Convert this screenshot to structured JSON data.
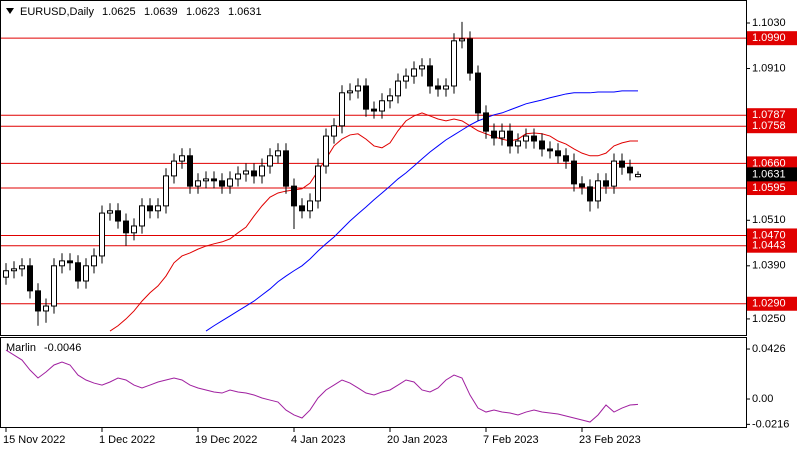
{
  "chart_data": [
    {
      "type": "candlestick",
      "title": "EURUSD,Daily",
      "categories": [
        "15 Nov 2022",
        null,
        null,
        null,
        null,
        null,
        null,
        null,
        null,
        null,
        null,
        null,
        "1 Dec 2022",
        null,
        null,
        null,
        null,
        null,
        null,
        null,
        null,
        null,
        null,
        null,
        "19 Dec 2022",
        null,
        null,
        null,
        null,
        null,
        null,
        null,
        null,
        null,
        null,
        null,
        "4 Jan 2023",
        null,
        null,
        null,
        null,
        null,
        null,
        null,
        null,
        null,
        null,
        null,
        "20 Jan 2023",
        null,
        null,
        null,
        null,
        null,
        null,
        null,
        null,
        null,
        null,
        null,
        "7 Feb 2023",
        null,
        null,
        null,
        null,
        null,
        null,
        null,
        null,
        null,
        null,
        null,
        "23 Feb 2023",
        null,
        null,
        null,
        null,
        null,
        null,
        null
      ],
      "open": [
        1.036,
        1.0377,
        1.0382,
        1.039,
        1.0324,
        1.0271,
        1.0284,
        1.039,
        1.0403,
        1.0398,
        1.035,
        1.039,
        1.0416,
        1.0529,
        1.0535,
        1.0508,
        1.0477,
        1.0495,
        1.0548,
        1.0535,
        1.0548,
        1.0627,
        1.0666,
        1.068,
        1.06,
        1.0614,
        1.0619,
        1.0614,
        1.06,
        1.0619,
        1.0632,
        1.064,
        1.0627,
        1.0653,
        1.068,
        1.0693,
        1.06,
        1.0548,
        1.0535,
        1.0561,
        1.0653,
        1.0732,
        1.0759,
        1.0846,
        1.0851,
        1.0864,
        1.0803,
        1.0798,
        1.0825,
        1.0838,
        1.0877,
        1.089,
        1.0909,
        1.0917,
        1.0864,
        1.0856,
        1.0864,
        1.0983,
        1.0988,
        1.0898,
        1.0793,
        1.0745,
        1.0727,
        1.0745,
        1.0706,
        1.0719,
        1.0732,
        1.0719,
        1.0698,
        1.0693,
        1.068,
        1.0666,
        1.0606,
        1.0598,
        1.0561,
        1.0614,
        1.06,
        1.0666,
        1.065,
        1.0625
      ],
      "high": [
        1.0397,
        1.0402,
        1.041,
        1.041,
        1.0344,
        1.0304,
        1.041,
        1.0423,
        1.0423,
        1.0418,
        1.041,
        1.0436,
        1.0549,
        1.0555,
        1.0555,
        1.0528,
        1.0515,
        1.0568,
        1.0568,
        1.0568,
        1.0647,
        1.0686,
        1.07,
        1.07,
        1.0634,
        1.0639,
        1.0639,
        1.0634,
        1.0639,
        1.0652,
        1.066,
        1.066,
        1.0673,
        1.07,
        1.0713,
        1.0713,
        1.062,
        1.0568,
        1.0581,
        1.0673,
        1.0752,
        1.0779,
        1.0866,
        1.0871,
        1.0884,
        1.0884,
        1.0823,
        1.0845,
        1.0858,
        1.0897,
        1.091,
        1.0929,
        1.0937,
        1.0937,
        1.0884,
        1.0884,
        1.1003,
        1.1033,
        1.1008,
        1.0918,
        1.0813,
        1.0765,
        1.0765,
        1.0765,
        1.0739,
        1.0752,
        1.0752,
        1.0739,
        1.0718,
        1.0713,
        1.07,
        1.0686,
        1.0626,
        1.0618,
        1.0634,
        1.0634,
        1.0686,
        1.0686,
        1.067,
        1.0639
      ],
      "low": [
        1.034,
        1.0357,
        1.0362,
        1.0304,
        1.0232,
        1.024,
        1.0264,
        1.037,
        1.0378,
        1.033,
        1.033,
        1.037,
        1.0396,
        1.0509,
        1.0488,
        1.0443,
        1.0457,
        1.0475,
        1.0515,
        1.0515,
        1.0528,
        1.0607,
        1.0646,
        1.058,
        1.058,
        1.0594,
        1.0594,
        1.058,
        1.058,
        1.0599,
        1.0612,
        1.0607,
        1.0607,
        1.0633,
        1.066,
        1.058,
        1.0487,
        1.0515,
        1.0515,
        1.0541,
        1.0633,
        1.0712,
        1.0739,
        1.0826,
        1.0831,
        1.0783,
        1.0778,
        1.0778,
        1.0805,
        1.0818,
        1.0857,
        1.087,
        1.0889,
        1.0844,
        1.0836,
        1.0836,
        1.0844,
        1.0963,
        1.0878,
        1.0773,
        1.0725,
        1.0707,
        1.0707,
        1.0686,
        1.0686,
        1.0699,
        1.0699,
        1.0678,
        1.0673,
        1.066,
        1.0646,
        1.0586,
        1.0578,
        1.0533,
        1.0541,
        1.058,
        1.058,
        1.063,
        1.0615,
        1.0623
      ],
      "close": [
        1.0377,
        1.0382,
        1.039,
        1.0324,
        1.0271,
        1.0284,
        1.039,
        1.0403,
        1.0398,
        1.035,
        1.039,
        1.0416,
        1.0529,
        1.0535,
        1.0508,
        1.0477,
        1.0495,
        1.0548,
        1.0535,
        1.0548,
        1.0627,
        1.0666,
        1.068,
        1.06,
        1.0614,
        1.0619,
        1.0614,
        1.06,
        1.0619,
        1.0632,
        1.064,
        1.0627,
        1.0653,
        1.068,
        1.0693,
        1.06,
        1.0548,
        1.0535,
        1.0561,
        1.0653,
        1.0732,
        1.0759,
        1.0846,
        1.0851,
        1.0864,
        1.0803,
        1.0798,
        1.0825,
        1.0838,
        1.0877,
        1.089,
        1.0909,
        1.0917,
        1.0864,
        1.0856,
        1.0864,
        1.0983,
        1.0988,
        1.0898,
        1.0793,
        1.0745,
        1.0727,
        1.0745,
        1.0706,
        1.0719,
        1.0732,
        1.0719,
        1.0698,
        1.0693,
        1.068,
        1.0666,
        1.0606,
        1.0598,
        1.0561,
        1.0614,
        1.06,
        1.0666,
        1.065,
        1.0635,
        1.0631
      ],
      "overlays": [
        {
          "color": "#e00000",
          "values": [
            null,
            null,
            null,
            null,
            null,
            null,
            null,
            null,
            null,
            null,
            null,
            null,
            null,
            1.0218,
            1.0232,
            1.025,
            1.0271,
            1.0297,
            1.0319,
            1.0337,
            1.0363,
            1.0398,
            1.0416,
            1.0424,
            1.0434,
            1.0442,
            1.0448,
            1.0453,
            1.0461,
            1.0477,
            1.0492,
            1.0521,
            1.0548,
            1.0571,
            1.0582,
            1.0587,
            1.059,
            1.0593,
            1.0608,
            1.064,
            1.0672,
            1.0706,
            1.0724,
            1.0735,
            1.0738,
            1.0724,
            1.0706,
            1.0701,
            1.0714,
            1.0746,
            1.0772,
            1.0785,
            1.0793,
            1.0785,
            1.0777,
            1.0772,
            1.0777,
            1.0772,
            1.0759,
            1.0746,
            1.0738,
            1.073,
            1.0724,
            1.0719,
            1.0724,
            1.0738,
            1.074,
            1.0738,
            1.0732,
            1.0719,
            1.0711,
            1.0698,
            1.0687,
            1.068,
            1.068,
            1.0687,
            1.0706,
            1.0714,
            1.0719,
            1.0719
          ]
        },
        {
          "color": "#0000ff",
          "values": [
            null,
            null,
            null,
            null,
            null,
            null,
            null,
            null,
            null,
            null,
            null,
            null,
            null,
            null,
            null,
            null,
            null,
            null,
            null,
            null,
            null,
            null,
            null,
            null,
            null,
            1.0218,
            1.0232,
            1.0245,
            1.0258,
            1.0271,
            1.0284,
            1.0297,
            1.0313,
            1.0329,
            1.0348,
            1.0363,
            1.0377,
            1.039,
            1.0408,
            1.0429,
            1.0448,
            1.0466,
            1.0487,
            1.0508,
            1.0527,
            1.0545,
            1.0564,
            1.0582,
            1.06,
            1.0619,
            1.0635,
            1.0653,
            1.0672,
            1.069,
            1.0706,
            1.0722,
            1.0735,
            1.0748,
            1.0761,
            1.0772,
            1.078,
            1.0788,
            1.0793,
            1.0801,
            1.0809,
            1.0817,
            1.0822,
            1.0827,
            1.0833,
            1.0838,
            1.0843,
            1.0846,
            1.0846,
            1.0846,
            1.0848,
            1.0848,
            1.0848,
            1.0851,
            1.0851,
            1.0851
          ]
        }
      ],
      "levels": [
        {
          "value": 1.099,
          "label": "1.0990"
        },
        {
          "value": 1.0787,
          "label": "1.0787"
        },
        {
          "value": 1.0758,
          "label": "1.0758"
        },
        {
          "value": 1.066,
          "label": "1.0660"
        },
        {
          "value": 1.0595,
          "label": "1.0595"
        },
        {
          "value": 1.047,
          "label": "1.0470"
        },
        {
          "value": 1.0443,
          "label": "1.0443"
        },
        {
          "value": 1.029,
          "label": "1.0290"
        }
      ],
      "level_color": "#e00000",
      "ylim": [
        1.0205,
        1.1088
      ],
      "yticks": [
        {
          "value": 1.103,
          "label": "1.1030"
        },
        {
          "value": 1.091,
          "label": "1.0910"
        },
        {
          "value": 1.051,
          "label": "1.0510"
        },
        {
          "value": 1.039,
          "label": "1.0390"
        },
        {
          "value": 1.025,
          "label": "1.0250"
        }
      ]
    },
    {
      "type": "line",
      "title": "Marlin",
      "color": "#a020a0",
      "values": [
        0.0417,
        0.0375,
        0.0332,
        0.0247,
        0.0179,
        0.023,
        0.029,
        0.0315,
        0.029,
        0.0204,
        0.0162,
        0.0136,
        0.0119,
        0.0145,
        0.0179,
        0.0162,
        0.0119,
        0.0094,
        0.0119,
        0.0145,
        0.0162,
        0.0179,
        0.0162,
        0.0119,
        0.0094,
        0.0077,
        0.006,
        0.0051,
        0.0077,
        0.006,
        0.0051,
        0.0034,
        0.0009,
        -0.0009,
        -0.0026,
        -0.0094,
        -0.0136,
        -0.0162,
        -0.0094,
        0.0009,
        0.0077,
        0.0119,
        0.0162,
        0.0136,
        0.0094,
        0.0051,
        0.0034,
        0.006,
        0.0077,
        0.0119,
        0.0162,
        0.0145,
        0.0077,
        0.006,
        0.0094,
        0.0162,
        0.0204,
        0.0179,
        0.0034,
        -0.0077,
        -0.0111,
        -0.0094,
        -0.0111,
        -0.0119,
        -0.0136,
        -0.0111,
        -0.0094,
        -0.0111,
        -0.0119,
        -0.0128,
        -0.0145,
        -0.0162,
        -0.0179,
        -0.0196,
        -0.0136,
        -0.0051,
        -0.0111,
        -0.0077,
        -0.0051,
        -0.0046
      ],
      "ylim": [
        -0.0247,
        0.052
      ],
      "yticks": [
        0.0426,
        {
          "value": 0,
          "label": "0.00"
        },
        -0.0216
      ]
    }
  ]
}
